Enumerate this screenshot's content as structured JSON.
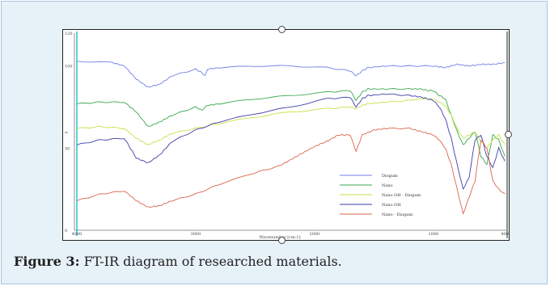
{
  "caption": {
    "label": "Figure 3:",
    "text": " FT-IR diagram of researched materials."
  },
  "colors": {
    "panel_background": "#e7f1f8",
    "panel_border": "#a9c4dc"
  },
  "chart_data": {
    "type": "line",
    "xlabel": "Wavenumber [cm-1]",
    "ylabel": "",
    "xlim": [
      4000,
      400
    ],
    "ylim": [
      0,
      120
    ],
    "x_ticks": [
      "4000",
      "3000",
      "2000",
      "1000",
      "400"
    ],
    "y_ticks": [
      "120",
      "100",
      "50",
      "0"
    ],
    "legend_position": "lower-right",
    "grid": false,
    "series": [
      {
        "name": "Diogum",
        "color": "#6f7fe6",
        "x": [
          4000,
          3700,
          3600,
          3500,
          3400,
          3300,
          3200,
          3000,
          2950,
          2920,
          2900,
          2800,
          2500,
          2200,
          1900,
          1700,
          1650,
          1600,
          1550,
          1400,
          1200,
          1000,
          900,
          800,
          700,
          600,
          500,
          400
        ],
        "y": [
          103,
          102,
          100,
          92,
          87,
          89,
          94,
          98,
          96,
          94,
          98,
          99,
          100,
          100,
          99,
          97,
          94,
          97,
          99,
          100,
          100,
          100,
          99,
          101,
          100,
          101,
          101,
          102
        ]
      },
      {
        "name": "Nano",
        "color": "#3aa84f",
        "x": [
          4000,
          3800,
          3600,
          3500,
          3400,
          3300,
          3200,
          3000,
          2950,
          2920,
          2900,
          2800,
          2500,
          2200,
          1900,
          1700,
          1650,
          1600,
          1550,
          1400,
          1200,
          1100,
          1050,
          1000,
          950,
          900,
          850,
          800,
          750,
          700,
          650,
          600,
          550,
          500,
          450,
          400
        ],
        "y": [
          77,
          78,
          78,
          72,
          63,
          66,
          70,
          75,
          73,
          75,
          76,
          77,
          80,
          82,
          84,
          85,
          79,
          84,
          86,
          86,
          86,
          86,
          85,
          85,
          82,
          80,
          70,
          60,
          52,
          56,
          60,
          45,
          40,
          58,
          55,
          45
        ]
      },
      {
        "name": "Nano OH - Diogum",
        "color": "#c9e04a",
        "x": [
          4000,
          3800,
          3600,
          3500,
          3400,
          3300,
          3200,
          3000,
          2800,
          2500,
          2200,
          1900,
          1700,
          1650,
          1600,
          1550,
          1400,
          1200,
          1100,
          1000,
          950,
          900,
          850,
          800,
          750,
          700,
          650,
          600,
          550,
          500,
          450,
          400
        ],
        "y": [
          62,
          63,
          62,
          56,
          52,
          55,
          59,
          62,
          65,
          69,
          72,
          74,
          75,
          74,
          76,
          77,
          78,
          79,
          80,
          80,
          78,
          76,
          70,
          62,
          56,
          58,
          60,
          54,
          50,
          55,
          58,
          52
        ]
      },
      {
        "name": "Nano OH",
        "color": "#3d3da8",
        "x": [
          4000,
          3800,
          3600,
          3550,
          3500,
          3400,
          3300,
          3200,
          3000,
          2800,
          2500,
          2200,
          1900,
          1700,
          1650,
          1600,
          1550,
          1400,
          1200,
          1100,
          1000,
          950,
          900,
          850,
          800,
          750,
          700,
          650,
          600,
          550,
          500,
          450,
          400
        ],
        "y": [
          52,
          55,
          56,
          50,
          44,
          41,
          46,
          54,
          61,
          66,
          71,
          75,
          80,
          81,
          75,
          80,
          82,
          83,
          82,
          81,
          79,
          75,
          68,
          56,
          40,
          25,
          32,
          55,
          58,
          45,
          38,
          50,
          42
        ]
      },
      {
        "name": "Nano - Diogum",
        "color": "#d9664a",
        "x": [
          4000,
          3800,
          3600,
          3500,
          3400,
          3300,
          3200,
          3000,
          2800,
          2500,
          2300,
          2200,
          2100,
          2000,
          1900,
          1800,
          1700,
          1650,
          1600,
          1500,
          1400,
          1200,
          1100,
          1000,
          950,
          900,
          850,
          800,
          750,
          700,
          650,
          600,
          550,
          500,
          450,
          400
        ],
        "y": [
          18,
          22,
          24,
          18,
          14,
          15,
          18,
          22,
          28,
          35,
          39,
          43,
          47,
          51,
          54,
          58,
          58,
          48,
          58,
          61,
          62,
          62,
          60,
          58,
          55,
          50,
          40,
          25,
          10,
          20,
          30,
          55,
          50,
          30,
          25,
          22
        ]
      }
    ]
  }
}
